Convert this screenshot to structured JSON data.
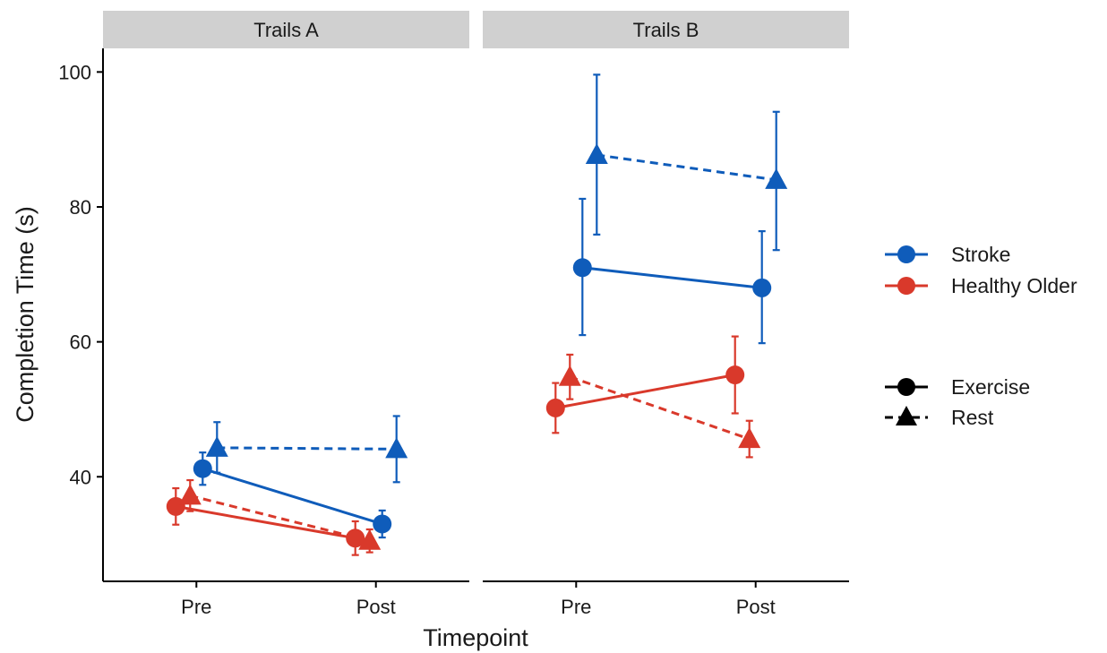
{
  "chart_data": {
    "type": "line",
    "facets": [
      {
        "title": "Trails A",
        "series": [
          {
            "group": "Stroke",
            "condition": "Exercise",
            "points": [
              {
                "x": "Pre",
                "y": 41.2,
                "lo": 38.8,
                "hi": 43.6
              },
              {
                "x": "Post",
                "y": 33.0,
                "lo": 31.0,
                "hi": 35.0
              }
            ]
          },
          {
            "group": "Stroke",
            "condition": "Rest",
            "points": [
              {
                "x": "Pre",
                "y": 44.3,
                "lo": 40.6,
                "hi": 48.1
              },
              {
                "x": "Post",
                "y": 44.1,
                "lo": 39.2,
                "hi": 49.0
              }
            ]
          },
          {
            "group": "Healthy Older",
            "condition": "Exercise",
            "points": [
              {
                "x": "Pre",
                "y": 35.6,
                "lo": 32.9,
                "hi": 38.3
              },
              {
                "x": "Post",
                "y": 30.9,
                "lo": 28.4,
                "hi": 33.4
              }
            ]
          },
          {
            "group": "Healthy Older",
            "condition": "Rest",
            "points": [
              {
                "x": "Pre",
                "y": 37.2,
                "lo": 34.9,
                "hi": 39.5
              },
              {
                "x": "Post",
                "y": 30.5,
                "lo": 28.8,
                "hi": 32.2
              }
            ]
          }
        ]
      },
      {
        "title": "Trails B",
        "series": [
          {
            "group": "Stroke",
            "condition": "Exercise",
            "points": [
              {
                "x": "Pre",
                "y": 71.0,
                "lo": 61.0,
                "hi": 81.2
              },
              {
                "x": "Post",
                "y": 68.0,
                "lo": 59.8,
                "hi": 76.4
              }
            ]
          },
          {
            "group": "Stroke",
            "condition": "Rest",
            "points": [
              {
                "x": "Pre",
                "y": 87.7,
                "lo": 75.9,
                "hi": 99.6
              },
              {
                "x": "Post",
                "y": 84.0,
                "lo": 73.6,
                "hi": 94.1
              }
            ]
          },
          {
            "group": "Healthy Older",
            "condition": "Exercise",
            "points": [
              {
                "x": "Pre",
                "y": 50.2,
                "lo": 46.5,
                "hi": 53.9
              },
              {
                "x": "Post",
                "y": 55.1,
                "lo": 49.4,
                "hi": 60.8
              }
            ]
          },
          {
            "group": "Healthy Older",
            "condition": "Rest",
            "points": [
              {
                "x": "Pre",
                "y": 54.8,
                "lo": 51.5,
                "hi": 58.1
              },
              {
                "x": "Post",
                "y": 45.6,
                "lo": 42.9,
                "hi": 48.3
              }
            ]
          }
        ]
      }
    ],
    "categories": [
      "Pre",
      "Post"
    ],
    "xlabel": "Timepoint",
    "ylabel": "Completion Time (s)",
    "yticks": [
      40,
      60,
      80,
      100
    ],
    "ylim": [
      24.5,
      103.5
    ],
    "legend": {
      "position": "right",
      "groups": [
        {
          "label": "Stroke",
          "color": "#0f5cba"
        },
        {
          "label": "Healthy Older",
          "color": "#d9392b"
        }
      ],
      "conditions": [
        {
          "label": "Exercise",
          "shape": "circle",
          "line": "solid"
        },
        {
          "label": "Rest",
          "shape": "triangle",
          "line": "dashed"
        }
      ]
    }
  }
}
